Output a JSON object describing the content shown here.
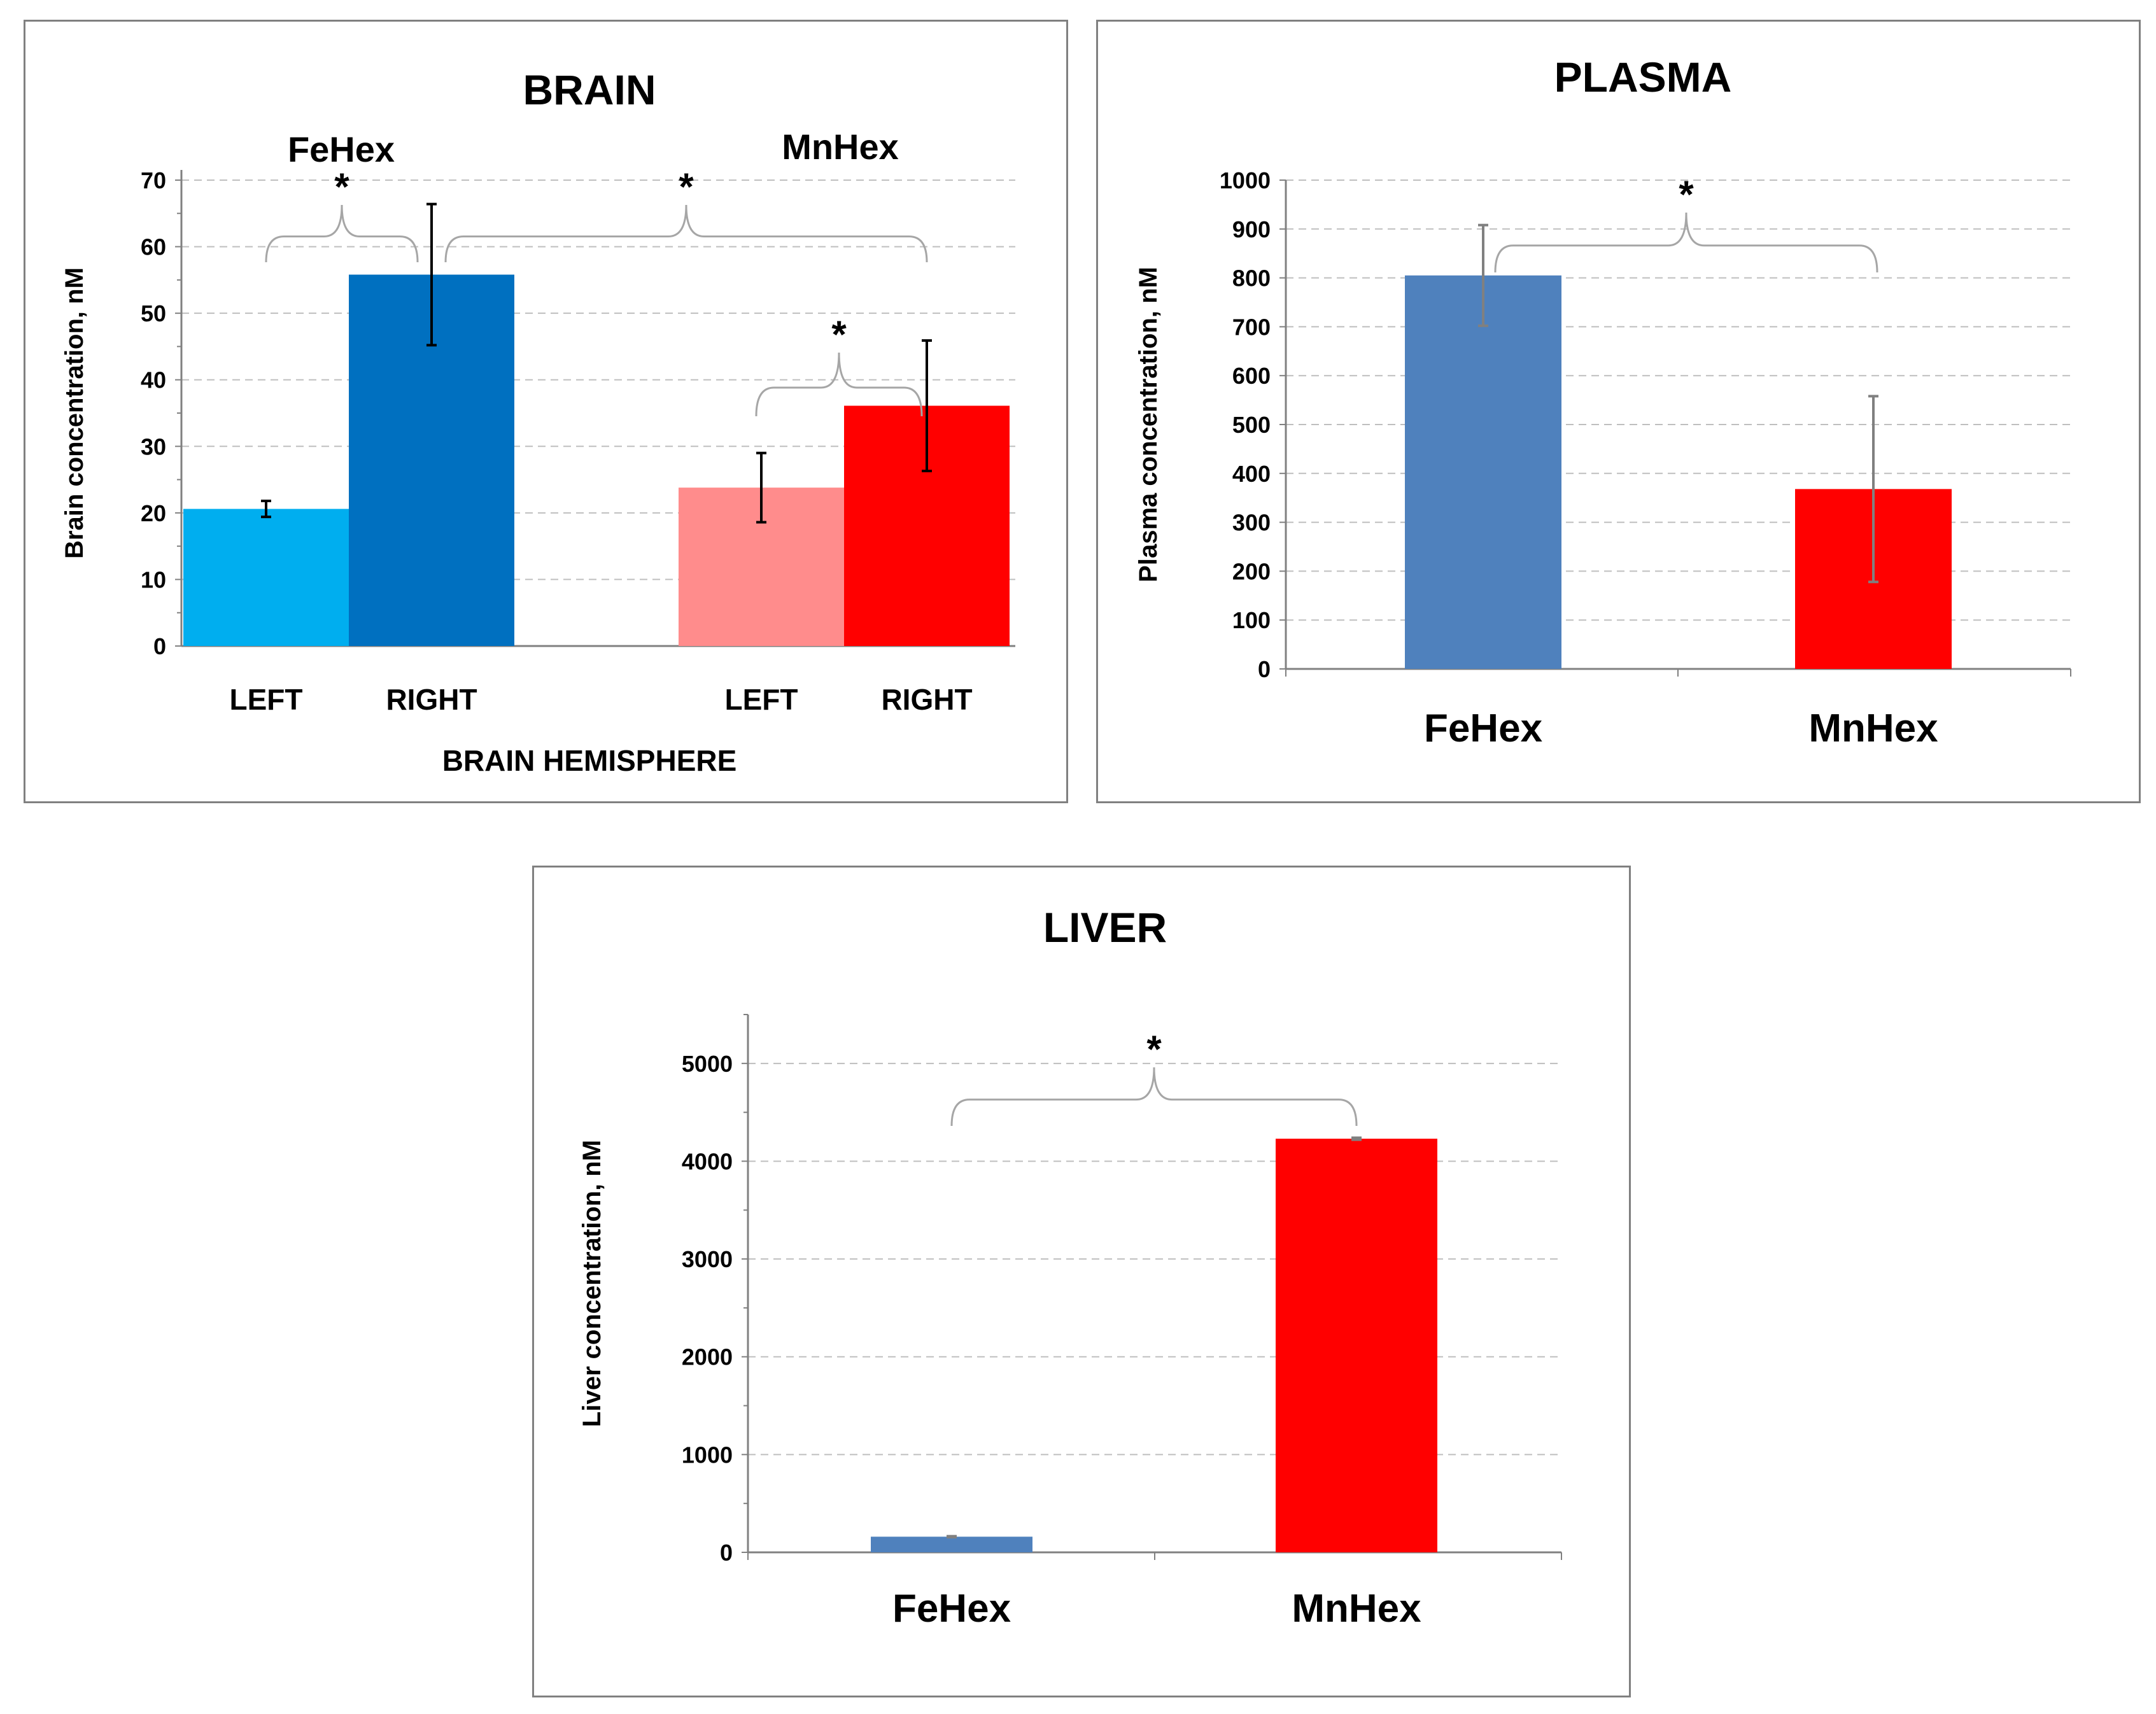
{
  "chart_data": [
    {
      "type": "bar",
      "title": "BRAIN",
      "groups": [
        "FeHex",
        "MnHex"
      ],
      "categories": [
        "LEFT",
        "RIGHT",
        "LEFT",
        "RIGHT"
      ],
      "values": [
        20.6,
        55.8,
        23.8,
        36.1
      ],
      "errors": [
        1.2,
        10.6,
        5.2,
        9.8
      ],
      "colors": [
        "#00AEEF",
        "#0070C0",
        "#FF8C8C",
        "#FF0000"
      ],
      "xlabel": "BRAIN HEMISPHERE",
      "ylabel": "Brain concentration, nM",
      "ylim": [
        0,
        75
      ],
      "yticks": [
        0,
        10,
        20,
        30,
        40,
        50,
        60,
        70
      ],
      "grid": true,
      "significance": [
        {
          "from": 0,
          "to": 1,
          "label": "*"
        },
        {
          "from": 1,
          "to": 3,
          "label": "*"
        },
        {
          "from": 2,
          "to": 3,
          "label": "*"
        }
      ]
    },
    {
      "type": "bar",
      "title": "PLASMA",
      "categories": [
        "FeHex",
        "MnHex"
      ],
      "values": [
        805,
        368
      ],
      "errors": [
        103,
        190
      ],
      "colors": [
        "#4F81BD",
        "#FF0000"
      ],
      "xlabel": "",
      "ylabel": "Plasma concentration, nM",
      "ylim": [
        0,
        1000
      ],
      "yticks": [
        0,
        100,
        200,
        300,
        400,
        500,
        600,
        700,
        800,
        900,
        1000
      ],
      "grid": true,
      "significance": [
        {
          "from": 0,
          "to": 1,
          "label": "*"
        }
      ]
    },
    {
      "type": "bar",
      "title": "LIVER",
      "categories": [
        "FeHex",
        "MnHex"
      ],
      "values": [
        160,
        4230
      ],
      "errors": [
        5,
        10
      ],
      "colors": [
        "#4F81BD",
        "#FF0000"
      ],
      "xlabel": "",
      "ylabel": "Liver concentration, nM",
      "ylim": [
        0,
        5500
      ],
      "yticks": [
        0,
        1000,
        2000,
        3000,
        4000,
        5000
      ],
      "grid": true,
      "significance": [
        {
          "from": 0,
          "to": 1,
          "label": "*"
        }
      ]
    }
  ]
}
